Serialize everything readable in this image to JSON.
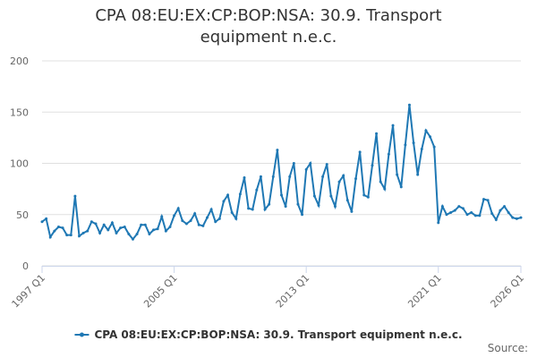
{
  "chart_data": {
    "type": "line",
    "title": "CPA 08:EU:EX:CP:BOP:NSA: 30.9. Transport equipment n.e.c.",
    "source": "Source:",
    "categories": [
      "1997 Q1",
      null,
      null,
      null,
      null,
      null,
      null,
      null,
      null,
      null,
      null,
      null,
      null,
      null,
      null,
      null,
      null,
      null,
      null,
      null,
      null,
      null,
      null,
      null,
      null,
      null,
      null,
      null,
      null,
      null,
      null,
      null,
      "2005 Q1",
      null,
      null,
      null,
      null,
      null,
      null,
      null,
      null,
      null,
      null,
      null,
      null,
      null,
      null,
      null,
      null,
      null,
      null,
      null,
      null,
      null,
      null,
      null,
      null,
      null,
      null,
      null,
      null,
      null,
      null,
      null,
      "2013 Q1",
      null,
      null,
      null,
      null,
      null,
      null,
      null,
      null,
      null,
      null,
      null,
      null,
      null,
      null,
      null,
      null,
      null,
      null,
      null,
      null,
      null,
      null,
      null,
      null,
      null,
      null,
      null,
      null,
      null,
      null,
      null,
      "2021 Q1",
      null,
      null,
      null,
      null,
      null,
      null,
      null,
      null,
      null,
      null,
      null,
      null,
      null,
      null,
      null,
      null,
      null,
      null,
      null,
      "2026 Q1"
    ],
    "series": [
      {
        "name": "CPA 08:EU:EX:CP:BOP:NSA: 30.9. Transport equipment n.e.c.",
        "color": "#1f78b4",
        "values": [
          43,
          46,
          28,
          34,
          38,
          37,
          30,
          30,
          68,
          29,
          32,
          34,
          43,
          41,
          32,
          40,
          35,
          42,
          32,
          37,
          38,
          31,
          26,
          31,
          40,
          40,
          31,
          35,
          36,
          48,
          34,
          38,
          49,
          56,
          44,
          41,
          44,
          51,
          40,
          39,
          47,
          55,
          43,
          46,
          63,
          69,
          52,
          46,
          70,
          86,
          56,
          55,
          74,
          87,
          55,
          60,
          87,
          113,
          69,
          58,
          87,
          100,
          60,
          50,
          94,
          100,
          68,
          59,
          87,
          99,
          68,
          58,
          82,
          88,
          64,
          53,
          85,
          111,
          69,
          67,
          98,
          129,
          82,
          75,
          109,
          137,
          89,
          77,
          118,
          157,
          120,
          89,
          114,
          132,
          126,
          116,
          42,
          58,
          50,
          52,
          54,
          58,
          56,
          50,
          52,
          49,
          49,
          65,
          64,
          51,
          45,
          54,
          58,
          52,
          47,
          46,
          47
        ]
      }
    ],
    "ylim": [
      0,
      200
    ],
    "yticks": [
      0,
      50,
      100,
      150,
      200
    ],
    "grid": true,
    "legend": "bottom"
  }
}
